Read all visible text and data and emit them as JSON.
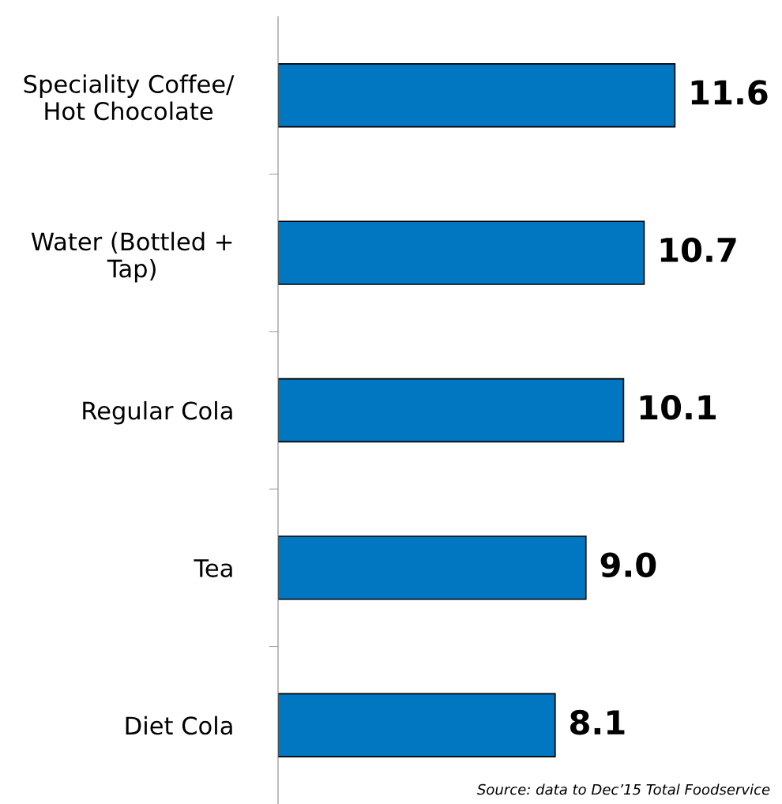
{
  "chart_data": {
    "type": "bar",
    "orientation": "horizontal",
    "categories": [
      "Speciality Coffee/\nHot Chocolate",
      "Water (Bottled +\nTap)",
      "Regular Cola",
      "Tea",
      "Diet Cola"
    ],
    "values": [
      11.6,
      10.7,
      10.1,
      9.0,
      8.1
    ],
    "value_labels": [
      "11.6",
      "10.7",
      "10.1",
      "9.0",
      "8.1"
    ],
    "color": "#0077c0",
    "tick_labels": "y",
    "grid": false,
    "legend": false,
    "annotations": [
      "Source: data to Dec’15 Total Foodservice"
    ]
  }
}
